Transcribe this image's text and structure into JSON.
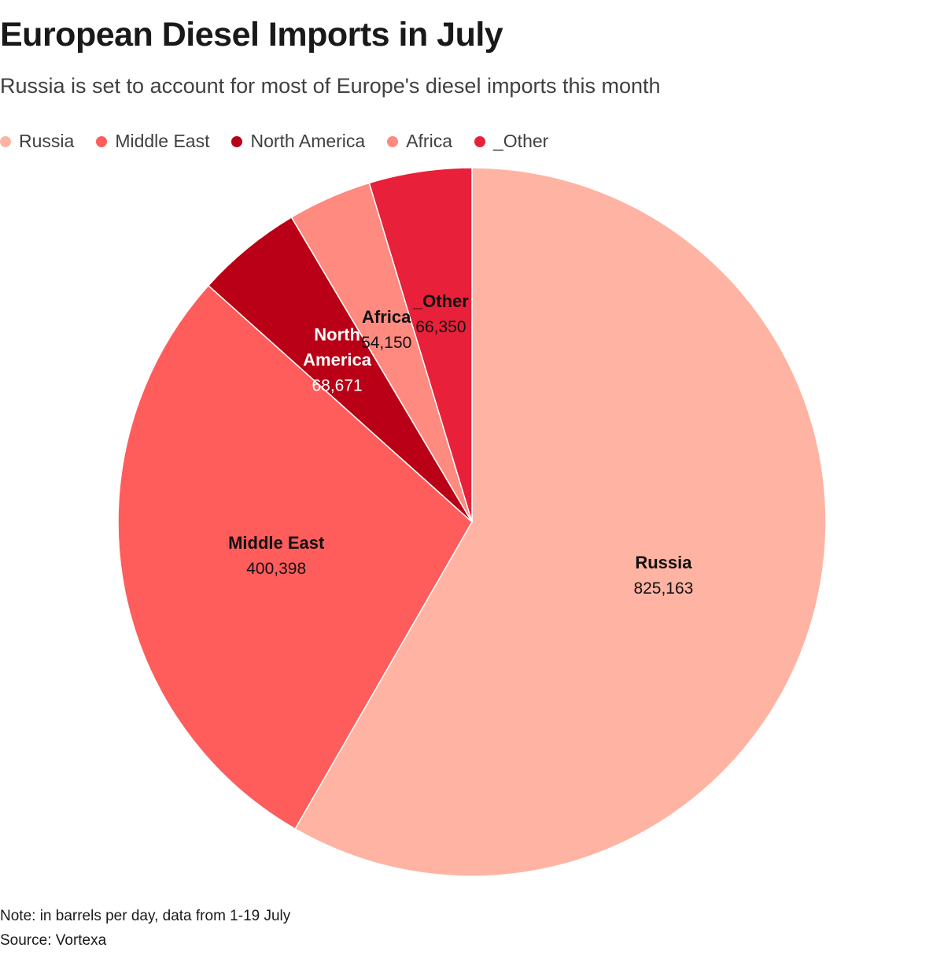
{
  "header": {
    "title": "European Diesel Imports in July",
    "subtitle": "Russia is set to account for most of Europe's diesel imports this month"
  },
  "chart_data": {
    "type": "pie",
    "title": "European Diesel Imports in July",
    "subtitle": "Russia is set to account for most of Europe's diesel imports this month",
    "legend_position": "top-left",
    "start": "12 o'clock",
    "direction": "clockwise",
    "slices": [
      {
        "label": "Russia",
        "value": 825163,
        "value_label": "825,163",
        "color": "#ffb3a3"
      },
      {
        "label": "Middle East",
        "value": 400398,
        "value_label": "400,398",
        "color": "#ff5c5c"
      },
      {
        "label": "North America",
        "value": 68671,
        "value_label": "68,671",
        "color": "#b90016",
        "label_lines": [
          "North",
          "America"
        ],
        "text_color": "#ffffff"
      },
      {
        "label": "Africa",
        "value": 54150,
        "value_label": "54,150",
        "color": "#ff8a80"
      },
      {
        "label": "_Other",
        "value": 66350,
        "value_label": "66,350",
        "color": "#e8203a"
      }
    ]
  },
  "footer": {
    "note": "Note: in barrels per day, data from 1-19 July",
    "source": "Source: Vortexa"
  }
}
